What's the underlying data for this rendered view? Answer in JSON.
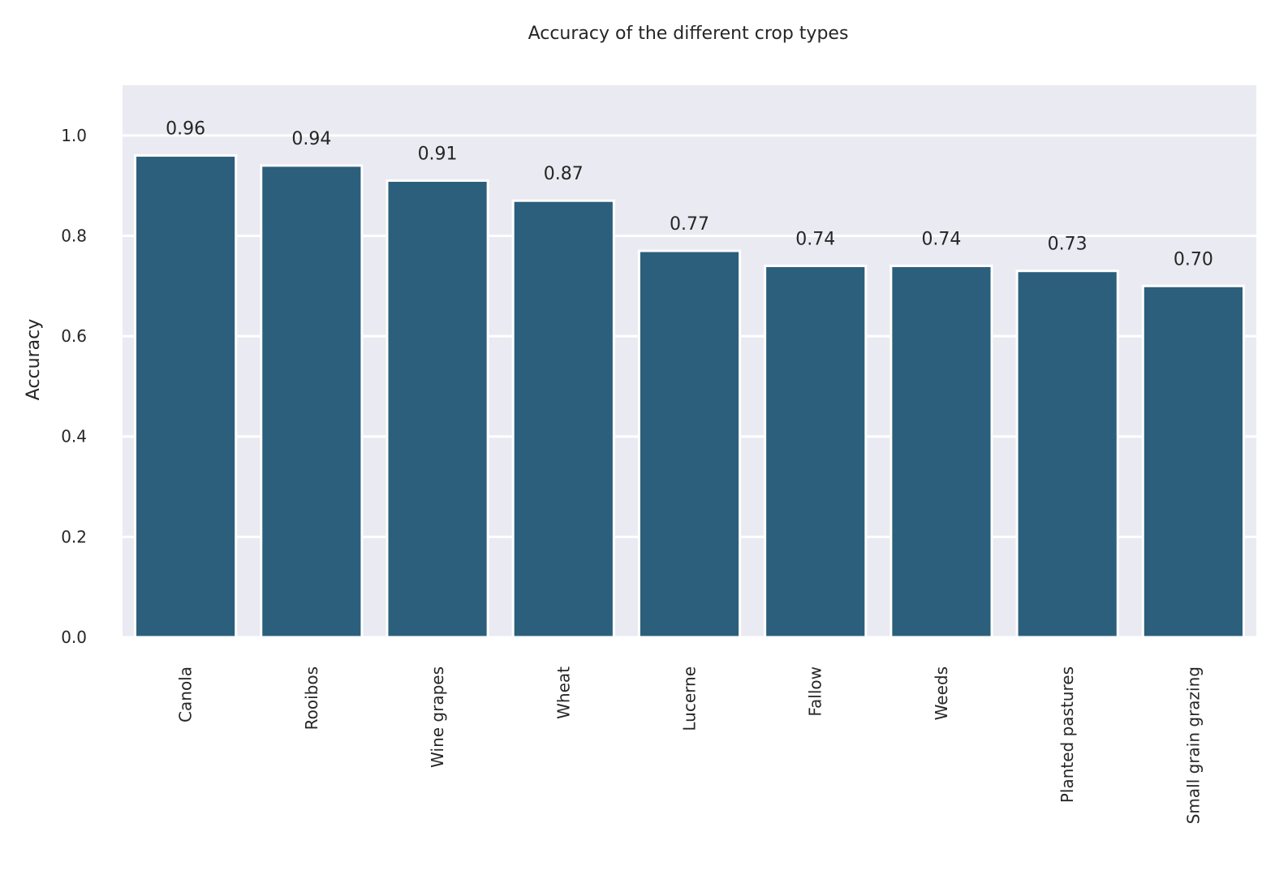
{
  "chart_data": {
    "type": "bar",
    "title": "Accuracy of the different crop types",
    "xlabel": "",
    "ylabel": "Accuracy",
    "ylim": [
      0,
      1.1
    ],
    "yticks": [
      "0.0",
      "0.2",
      "0.4",
      "0.6",
      "0.8",
      "1.0"
    ],
    "ytick_values": [
      0,
      0.2,
      0.4,
      0.6,
      0.8,
      1.0
    ],
    "grid": true,
    "categories": [
      "Canola",
      "Rooibos",
      "Wine grapes",
      "Wheat",
      "Lucerne",
      "Fallow",
      "Weeds",
      "Planted pastures",
      "Small grain grazing"
    ],
    "values": [
      0.96,
      0.94,
      0.91,
      0.87,
      0.77,
      0.74,
      0.74,
      0.73,
      0.7
    ],
    "data_labels": [
      "0.96",
      "0.94",
      "0.91",
      "0.87",
      "0.77",
      "0.74",
      "0.74",
      "0.73",
      "0.70"
    ],
    "colors": {
      "bar": "#2b5f7c",
      "plot_background": "#eaeaf2",
      "grid": "#ffffff",
      "text": "#262626"
    }
  }
}
